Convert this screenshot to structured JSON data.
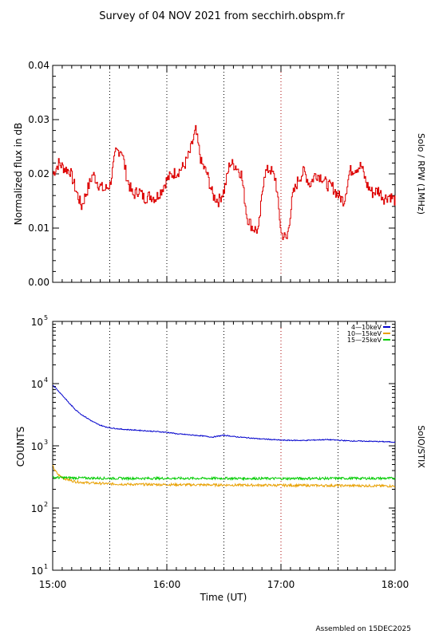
{
  "title": "Survey of 04 NOV 2021 from secchirh.obspm.fr",
  "footer": "Assembled on 15DEC2025",
  "chart_data": [
    {
      "type": "line",
      "panel": "top",
      "ylabel": "Normalized flux in dB",
      "side_label": "Solo / RPW (1MHz)",
      "ylim": [
        0.0,
        0.04
      ],
      "yticks": [
        "0.00",
        "0.01",
        "0.02",
        "0.03",
        "0.04"
      ],
      "xlim_hours": [
        15.0,
        18.0
      ],
      "vlines_hours": [
        15.5,
        16.0,
        16.5,
        17.0,
        17.5
      ],
      "series": [
        {
          "color": "#dd0000",
          "x": [
            15.0,
            15.05,
            15.1,
            15.15,
            15.2,
            15.25,
            15.3,
            15.35,
            15.4,
            15.45,
            15.5,
            15.55,
            15.6,
            15.65,
            15.7,
            15.75,
            15.8,
            15.85,
            15.9,
            15.95,
            16.0,
            16.05,
            16.1,
            16.15,
            16.2,
            16.25,
            16.3,
            16.35,
            16.4,
            16.45,
            16.5,
            16.55,
            16.6,
            16.65,
            16.7,
            16.75,
            16.8,
            16.85,
            16.9,
            16.95,
            17.0,
            17.05,
            17.1,
            17.15,
            17.2,
            17.25,
            17.3,
            17.35,
            17.4,
            17.45,
            17.5,
            17.55,
            17.6,
            17.65,
            17.7,
            17.75,
            17.8,
            17.85,
            17.9,
            17.95,
            18.0
          ],
          "y": [
            0.02,
            0.022,
            0.021,
            0.0205,
            0.017,
            0.014,
            0.017,
            0.02,
            0.018,
            0.017,
            0.018,
            0.024,
            0.0245,
            0.019,
            0.016,
            0.017,
            0.0155,
            0.016,
            0.0155,
            0.017,
            0.019,
            0.02,
            0.0205,
            0.0215,
            0.024,
            0.028,
            0.022,
            0.02,
            0.016,
            0.015,
            0.017,
            0.022,
            0.0215,
            0.02,
            0.012,
            0.01,
            0.0095,
            0.02,
            0.021,
            0.019,
            0.009,
            0.008,
            0.016,
            0.019,
            0.0205,
            0.018,
            0.02,
            0.0195,
            0.018,
            0.0175,
            0.016,
            0.015,
            0.0205,
            0.021,
            0.0215,
            0.018,
            0.0165,
            0.017,
            0.0155,
            0.016,
            0.015
          ]
        }
      ]
    },
    {
      "type": "line",
      "panel": "bottom",
      "ylabel": "COUNTS",
      "side_label": "SolO/STIX",
      "yscale": "log",
      "ylim": [
        10,
        100000
      ],
      "ytick_bases": [
        "10",
        "10",
        "10",
        "10",
        "10"
      ],
      "ytick_exps": [
        "1",
        "2",
        "3",
        "4",
        "5"
      ],
      "xlim_hours": [
        15.0,
        18.0
      ],
      "xticks": [
        "15:00",
        "16:00",
        "17:00",
        "18:00"
      ],
      "xlabel": "Time (UT)",
      "vlines_hours": [
        15.5,
        16.0,
        16.5,
        17.0,
        17.5
      ],
      "legend_position": "top-right",
      "series": [
        {
          "name": "4—10keV",
          "color": "#0000cc",
          "x": [
            15.0,
            15.05,
            15.1,
            15.15,
            15.2,
            15.25,
            15.3,
            15.35,
            15.4,
            15.45,
            15.5,
            15.6,
            15.7,
            15.8,
            15.9,
            16.0,
            16.1,
            16.2,
            16.3,
            16.4,
            16.5,
            16.6,
            16.7,
            16.8,
            16.9,
            17.0,
            17.2,
            17.4,
            17.6,
            17.8,
            18.0
          ],
          "y": [
            9500,
            7600,
            6000,
            4700,
            3800,
            3200,
            2800,
            2450,
            2200,
            2050,
            1950,
            1850,
            1800,
            1750,
            1700,
            1650,
            1550,
            1500,
            1450,
            1380,
            1480,
            1400,
            1350,
            1300,
            1270,
            1230,
            1220,
            1260,
            1200,
            1180,
            1150
          ]
        },
        {
          "name": "10—15keV",
          "color": "#e8a000",
          "x": [
            15.0,
            15.02,
            15.05,
            15.1,
            15.15,
            15.2,
            15.3,
            15.4,
            15.5,
            15.7,
            16.0,
            16.3,
            16.6,
            17.0,
            17.4,
            17.8,
            18.0
          ],
          "y": [
            480,
            400,
            340,
            300,
            280,
            265,
            255,
            250,
            245,
            240,
            238,
            236,
            234,
            232,
            230,
            228,
            225
          ]
        },
        {
          "name": "15—25keV",
          "color": "#00cc00",
          "x": [
            15.0,
            15.2,
            15.5,
            16.0,
            16.5,
            17.0,
            17.5,
            18.0
          ],
          "y": [
            310,
            305,
            300,
            300,
            300,
            298,
            300,
            300
          ]
        }
      ]
    }
  ]
}
